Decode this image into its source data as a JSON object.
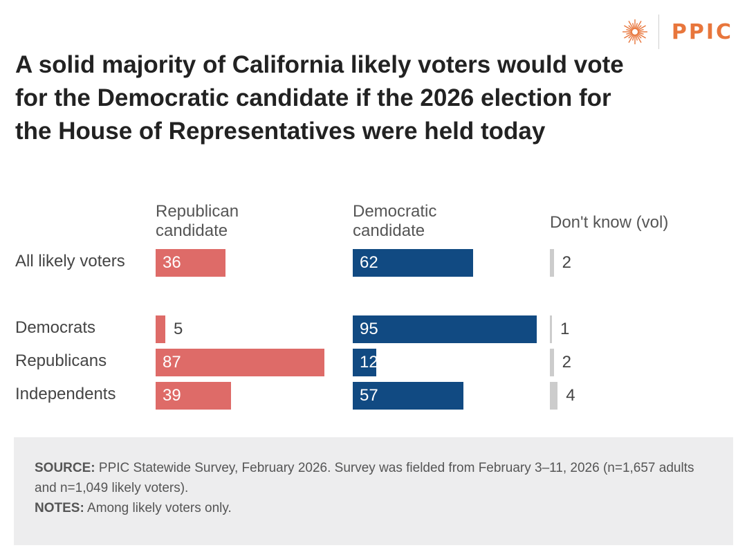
{
  "brand": {
    "name": "PPIC",
    "color": "#e8763c",
    "icon": "sunburst-logo-icon"
  },
  "title": "A solid majority of California likely voters would vote for the Democratic candidate if the 2026 election for the House of Representatives were held today",
  "chart_data": {
    "type": "bar",
    "orientation": "horizontal",
    "layout": "small-multiples-by-column",
    "categories": [
      "All likely voters",
      "Democrats",
      "Republicans",
      "Independents"
    ],
    "series": [
      {
        "name": "Republican candidate",
        "color": "#de6b68",
        "values": [
          36,
          5,
          87,
          39
        ]
      },
      {
        "name": "Democratic candidate",
        "color": "#114a82",
        "values": [
          62,
          95,
          12,
          57
        ]
      },
      {
        "name": "Don't know (vol)",
        "color": "#cccccc",
        "values": [
          2,
          1,
          2,
          4
        ]
      }
    ],
    "xlim": [
      0,
      100
    ],
    "unit": "percent",
    "grid": false
  },
  "footer": {
    "source_label": "SOURCE:",
    "source_text": "PPIC Statewide Survey, February 2026. Survey was fielded from February 3–11, 2026 (n=1,657 adults and n=1,049 likely voters).",
    "notes_label": "NOTES:",
    "notes_text": "Among likely voters only."
  }
}
